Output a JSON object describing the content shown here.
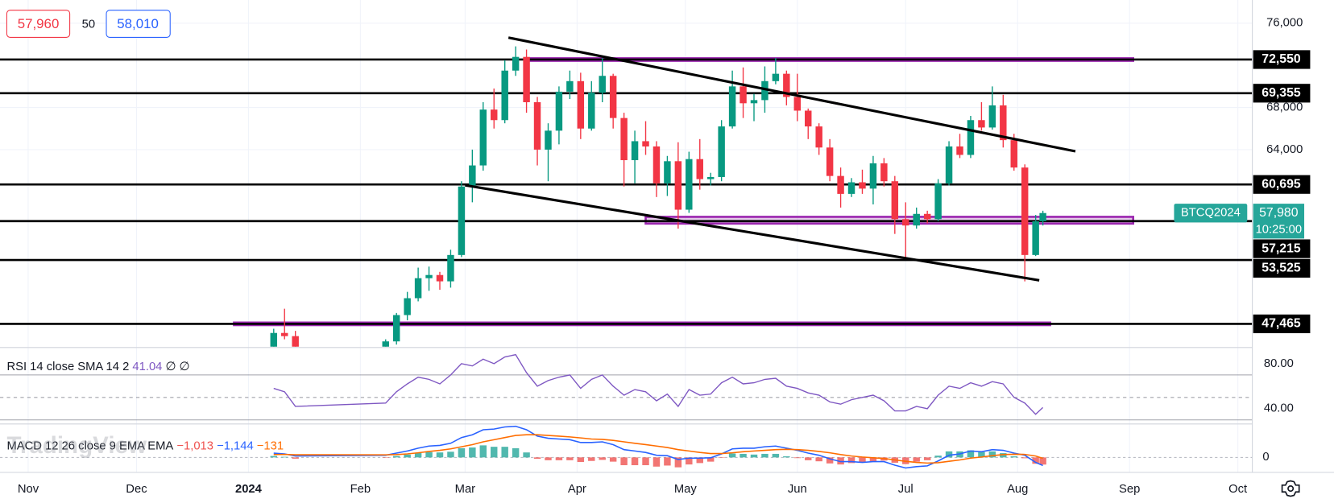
{
  "chart_data": [
    {
      "type": "candlestick",
      "quote": {
        "bid": {
          "value": 57960,
          "label": "57,960"
        },
        "spread": 50,
        "ask": {
          "value": 58010,
          "label": "58,010"
        }
      },
      "watermark": "TradingView",
      "up_color": "#089981",
      "down_color": "#f23645",
      "x": [
        68,
        71,
        74,
        99,
        102,
        105,
        108,
        111,
        114,
        117,
        120,
        123,
        126,
        129,
        132,
        135,
        138,
        141,
        144,
        147,
        150,
        153,
        156,
        159,
        162,
        165,
        168,
        171,
        174,
        177,
        180,
        183,
        186,
        189,
        192,
        195,
        198,
        201,
        204,
        207,
        210,
        213,
        216,
        219,
        222,
        225,
        228,
        231,
        234,
        237,
        240,
        243,
        246,
        249,
        252,
        255,
        258,
        261,
        264,
        267,
        270,
        273,
        276,
        279,
        281
      ],
      "open": [
        45000,
        46600,
        46300,
        44500,
        45800,
        48300,
        49900,
        51800,
        52100,
        51500,
        54000,
        60500,
        62500,
        67800,
        66800,
        71500,
        72800,
        68500,
        64000,
        65800,
        69500,
        70500,
        66000,
        69400,
        71000,
        67000,
        63000,
        64800,
        64300,
        60800,
        62900,
        58300,
        63100,
        61200,
        61400,
        66200,
        70000,
        68400,
        68700,
        70500,
        71200,
        69000,
        67700,
        66200,
        64200,
        61500,
        59800,
        60900,
        60300,
        62700,
        61000,
        57400,
        56800,
        57900,
        57400,
        60800,
        64300,
        63500,
        66800,
        66100,
        68200,
        64900,
        62300,
        54000,
        57200
      ],
      "high": [
        47000,
        48900,
        46800,
        46000,
        48500,
        50500,
        52800,
        52900,
        52400,
        54500,
        61000,
        64000,
        68500,
        69800,
        72500,
        73800,
        73500,
        69000,
        66500,
        70000,
        71500,
        71300,
        70500,
        72700,
        71200,
        67500,
        65800,
        66700,
        64800,
        63400,
        64700,
        63800,
        65000,
        61800,
        66800,
        71500,
        71800,
        69300,
        71900,
        72700,
        71500,
        71200,
        67900,
        66500,
        65000,
        62300,
        61300,
        62100,
        63400,
        63200,
        61500,
        59000,
        58500,
        58200,
        61200,
        64800,
        65500,
        67200,
        68500,
        70000,
        69200,
        65500,
        62600,
        57800,
        58200
      ],
      "low": [
        44500,
        46000,
        42000,
        44300,
        45500,
        47800,
        49600,
        50600,
        50700,
        50900,
        53800,
        59000,
        62000,
        66000,
        66500,
        71000,
        67500,
        62500,
        61000,
        64500,
        68800,
        65000,
        65800,
        68500,
        66000,
        60500,
        60800,
        63500,
        59500,
        59600,
        56500,
        58000,
        60200,
        60600,
        61000,
        66000,
        67000,
        66700,
        67500,
        70200,
        68200,
        66700,
        65000,
        63500,
        61000,
        58500,
        59500,
        59800,
        58800,
        60500,
        56000,
        53600,
        56500,
        57000,
        57200,
        60600,
        63200,
        63200,
        65800,
        65900,
        64200,
        62000,
        51500,
        53900,
        56800
      ],
      "close": [
        46600,
        46300,
        42800,
        45800,
        48300,
        49900,
        51800,
        52100,
        51500,
        54000,
        60500,
        62500,
        67800,
        66800,
        71500,
        72800,
        68500,
        64000,
        65800,
        69500,
        70500,
        66000,
        69400,
        71000,
        67000,
        63000,
        64800,
        64300,
        60800,
        62900,
        58300,
        63100,
        61200,
        61400,
        66200,
        70000,
        68400,
        68700,
        70500,
        71200,
        69000,
        67700,
        66200,
        64200,
        61500,
        59800,
        60900,
        60300,
        62700,
        61000,
        57400,
        56800,
        57900,
        57400,
        60800,
        64300,
        63500,
        66800,
        66100,
        68200,
        64900,
        62300,
        54000,
        57200,
        57980
      ],
      "xlim": [
        -7.8,
        339
      ],
      "xticks": [
        {
          "value": 0,
          "label": "Nov"
        },
        {
          "value": 30,
          "label": "Dec"
        },
        {
          "value": 61,
          "label": "2024"
        },
        {
          "value": 92,
          "label": "Feb"
        },
        {
          "value": 121,
          "label": "Mar"
        },
        {
          "value": 152,
          "label": "Apr"
        },
        {
          "value": 182,
          "label": "May"
        },
        {
          "value": 213,
          "label": "Jun"
        },
        {
          "value": 243,
          "label": "Jul"
        },
        {
          "value": 274,
          "label": "Aug"
        },
        {
          "value": 305,
          "label": "Sep"
        },
        {
          "value": 335,
          "label": "Oct"
        }
      ],
      "ylim": [
        45300,
        78200
      ],
      "yticks": [
        {
          "value": 64000,
          "label": "64,000"
        },
        {
          "value": 68000,
          "label": "68,000"
        },
        {
          "value": 76000,
          "label": "76,000"
        }
      ],
      "grid": true,
      "last_price": {
        "symbol": "BTCQ2024",
        "value": 57980,
        "label": "57,980",
        "countdown": "10:25:00",
        "color": "#26a69a"
      },
      "levels": [
        {
          "value": 72550,
          "label": "72,550"
        },
        {
          "value": 69355,
          "label": "69,355"
        },
        {
          "value": 60695,
          "label": "60,695"
        },
        {
          "value": 57215,
          "label": "57,215"
        },
        {
          "value": 53525,
          "label": "53,525"
        },
        {
          "value": 47465,
          "label": "47,465"
        }
      ],
      "trendlines": [
        {
          "x": [
            133,
            290
          ],
          "y": [
            74630,
            63840
          ]
        },
        {
          "x": [
            121,
            280
          ],
          "y": [
            60620,
            51600
          ]
        }
      ],
      "zones": [
        {
          "x": [
            139,
            306
          ],
          "y": [
            72550,
            72550
          ]
        },
        {
          "x": [
            171,
            306
          ],
          "y": [
            57100,
            57500
          ]
        },
        {
          "x": [
            57,
            283
          ],
          "y": [
            47465,
            47465
          ]
        }
      ],
      "zone_color": "#9c27b0"
    },
    {
      "type": "line",
      "legend": "RSI 14 close SMA 14 2",
      "last": 41.04,
      "extra": "∅ ∅",
      "color": "#7e57c2",
      "values": [
        58,
        55,
        42,
        45,
        55,
        62,
        68,
        66,
        62,
        70,
        80,
        78,
        84,
        80,
        86,
        88,
        72,
        60,
        65,
        68,
        70,
        58,
        66,
        70,
        60,
        52,
        57,
        55,
        47,
        53,
        42,
        57,
        52,
        53,
        63,
        68,
        62,
        63,
        66,
        67,
        60,
        58,
        54,
        52,
        46,
        44,
        48,
        50,
        52,
        47,
        38,
        38,
        42,
        40,
        52,
        60,
        58,
        63,
        60,
        64,
        62,
        50,
        45,
        35,
        41.04
      ],
      "ylim": [
        27.9,
        93.6
      ],
      "yticks": [
        {
          "value": 80,
          "label": "80.00"
        },
        {
          "value": 40,
          "label": "40.00"
        }
      ],
      "bands": [
        70,
        50,
        30
      ]
    },
    {
      "type": "macd",
      "legend": "MACD 12 26 close 9 EMA EMA",
      "histogram": {
        "values": [
          200,
          80,
          -180,
          -60,
          200,
          400,
          650,
          750,
          700,
          800,
          1300,
          1400,
          1700,
          1500,
          1500,
          1300,
          700,
          -200,
          -400,
          -400,
          -400,
          -650,
          -500,
          -350,
          -600,
          -1100,
          -1100,
          -1100,
          -1300,
          -1150,
          -1400,
          -1000,
          -800,
          -600,
          -50,
          550,
          500,
          400,
          500,
          500,
          150,
          -100,
          -400,
          -550,
          -850,
          -1000,
          -800,
          -750,
          -550,
          -450,
          -750,
          -950,
          -600,
          -400,
          250,
          850,
          850,
          1000,
          750,
          850,
          600,
          150,
          -120,
          -900,
          -1013
        ],
        "up_color": "#26a69a",
        "down_color": "#ef5350",
        "last": {
          "value": -1013,
          "label": "−1,013"
        }
      },
      "macd": {
        "values": [
          600,
          500,
          200,
          300,
          600,
          900,
          1300,
          1600,
          1700,
          2000,
          2800,
          3200,
          3900,
          4000,
          4300,
          4400,
          3900,
          3000,
          2700,
          2600,
          2500,
          2100,
          2100,
          2200,
          1800,
          1100,
          900,
          700,
          300,
          250,
          -300,
          -100,
          -100,
          -50,
          500,
          1200,
          1300,
          1300,
          1500,
          1600,
          1300,
          1000,
          600,
          300,
          -200,
          -600,
          -600,
          -700,
          -600,
          -600,
          -1100,
          -1500,
          -1300,
          -1200,
          -500,
          300,
          500,
          900,
          800,
          1100,
          1000,
          600,
          300,
          -700,
          -1144
        ],
        "color": "#2962ff",
        "last": {
          "value": -1144,
          "label": "−1,144"
        }
      },
      "signal": {
        "values": [
          400,
          420,
          380,
          360,
          400,
          500,
          650,
          850,
          1000,
          1200,
          1500,
          1800,
          2200,
          2500,
          2800,
          3100,
          3200,
          3200,
          3100,
          3000,
          2900,
          2750,
          2600,
          2550,
          2400,
          2200,
          2000,
          1800,
          1600,
          1400,
          1100,
          900,
          700,
          550,
          550,
          650,
          800,
          900,
          1000,
          1100,
          1150,
          1100,
          1000,
          850,
          650,
          400,
          200,
          50,
          -50,
          -150,
          -350,
          -550,
          -700,
          -800,
          -750,
          -550,
          -350,
          -100,
          50,
          250,
          400,
          450,
          420,
          200,
          -131
        ],
        "color": "#ff6d00",
        "last": {
          "value": -131,
          "label": "−131"
        }
      },
      "ylim": [
        -2000,
        4600
      ],
      "yticks": [
        0
      ]
    }
  ]
}
